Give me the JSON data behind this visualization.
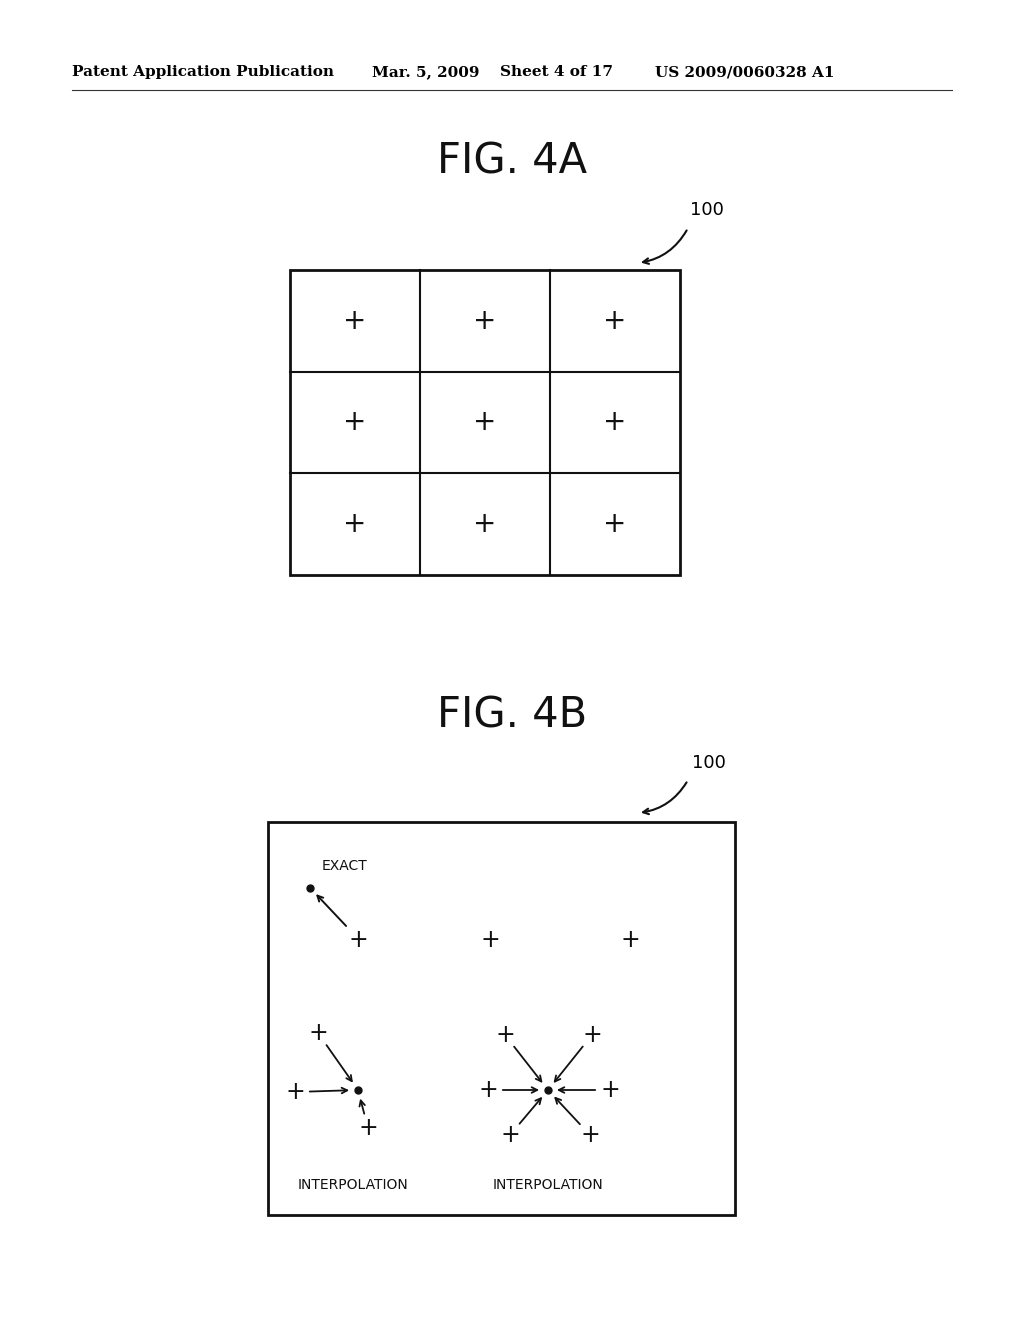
{
  "bg_color": "#ffffff",
  "header_text": "Patent Application Publication",
  "header_date": "Mar. 5, 2009",
  "header_sheet": "Sheet 4 of 17",
  "header_patent": "US 2009/0060328 A1",
  "fig4a_title": "FIG. 4A",
  "fig4b_title": "FIG. 4B",
  "label_100": "100",
  "label_exact": "EXACT",
  "label_interpolation": "INTERPOLATION",
  "grid_color": "#1a1a1a",
  "cross_color": "#1a1a1a",
  "dot_color": "#1a1a1a",
  "arrow_color": "#1a1a1a",
  "title_fontsize": 30,
  "header_fontsize": 11,
  "cross_fontsize_large": 20,
  "cross_fontsize_small": 17,
  "label_fontsize": 10
}
